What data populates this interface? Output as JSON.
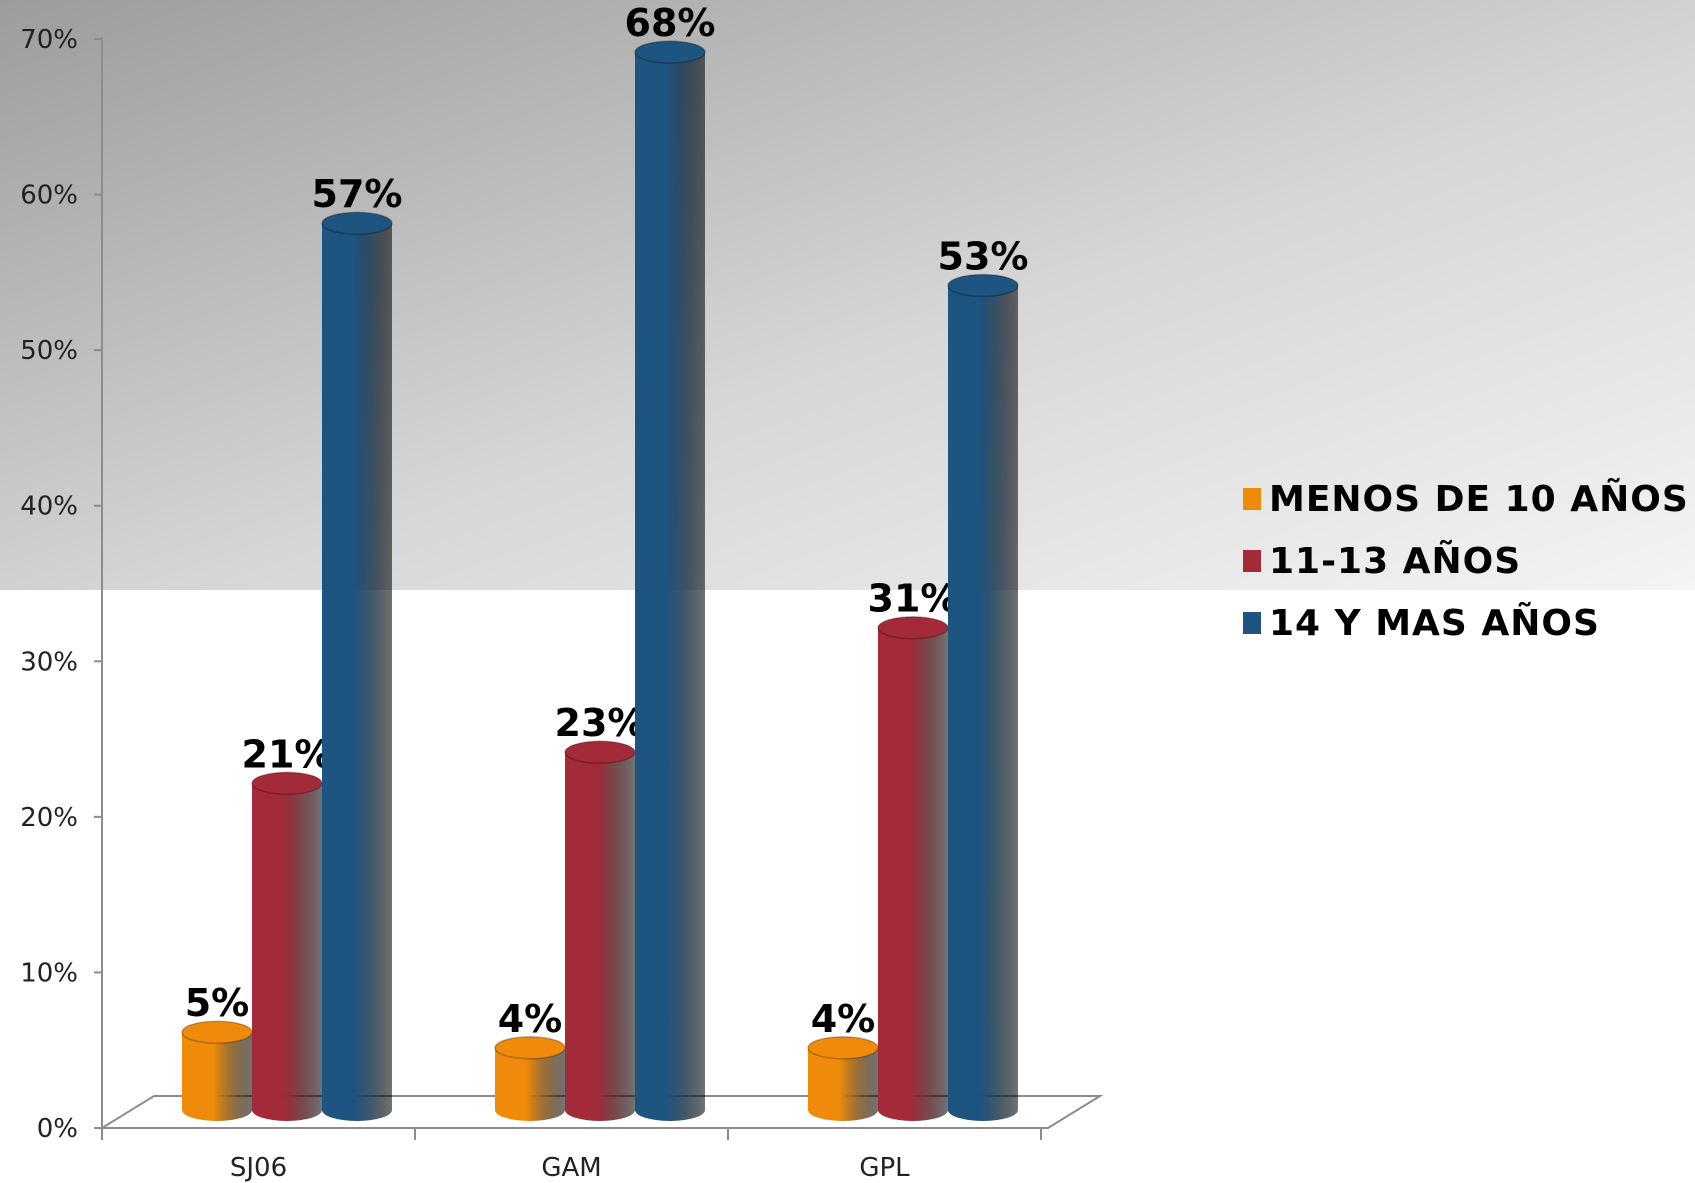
{
  "chart_data": {
    "type": "bar",
    "categories": [
      "SJ06",
      "GAM",
      "GPL"
    ],
    "series": [
      {
        "name": "MENOS DE 10 AÑOS",
        "values": [
          5,
          4,
          4
        ],
        "labels": [
          "5%",
          "4%",
          "4%"
        ],
        "color": "#f08a0a"
      },
      {
        "name": "11-13 AÑOS",
        "values": [
          21,
          23,
          31
        ],
        "labels": [
          "21%",
          "23%",
          "31%"
        ],
        "color": "#a32a38"
      },
      {
        "name": "14 Y MAS AÑOS",
        "values": [
          57,
          68,
          53
        ],
        "labels": [
          "57%",
          "68%",
          "53%"
        ],
        "color": "#1d5480"
      }
    ],
    "y_ticks": [
      "0%",
      "10%",
      "20%",
      "30%",
      "40%",
      "50%",
      "60%",
      "70%"
    ],
    "ylim": [
      0,
      70
    ],
    "legend_position": "right",
    "grid": false,
    "title": "",
    "xlabel": "",
    "ylabel": ""
  }
}
